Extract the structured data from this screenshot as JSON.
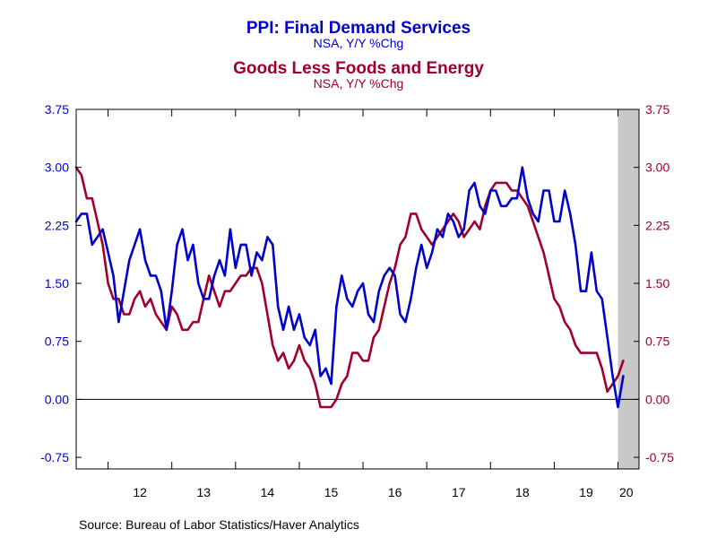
{
  "titles": {
    "series1_title": "PPI: Final Demand Services",
    "series1_sub": "NSA, Y/Y %Chg",
    "series2_title": "Goods Less Foods and Energy",
    "series2_sub": "NSA, Y/Y %Chg"
  },
  "source": "Source:  Bureau of Labor Statistics/Haver Analytics",
  "colors": {
    "series1": "#0000CC",
    "series2": "#A0002A",
    "recession_shade": "#C8C8C8",
    "left_axis_labels": "#0000CC",
    "right_axis_labels": "#A0002A",
    "frame": "#000000",
    "background": "#FFFFFF"
  },
  "chart_data": {
    "type": "line",
    "x_range": [
      2011.5,
      2020.33
    ],
    "ylim": [
      -0.9,
      3.75
    ],
    "yticks": [
      -0.75,
      0.0,
      0.75,
      1.5,
      2.25,
      3.0,
      3.75
    ],
    "left_tick_labels": [
      "-0.75",
      "0.00",
      "0.75",
      "1.50",
      "2.25",
      "3.00",
      "3.75"
    ],
    "right_tick_labels": [
      "-0.75",
      "0.00",
      "0.75",
      "1.50",
      "2.25",
      "3.00",
      "3.75"
    ],
    "x_tick_labels": [
      "12",
      "13",
      "14",
      "15",
      "16",
      "17",
      "18",
      "19",
      "20"
    ],
    "x_tick_label_positions": [
      2012.5,
      2013.5,
      2014.5,
      2015.5,
      2016.5,
      2017.5,
      2018.5,
      2019.5,
      2020.13
    ],
    "zero_line": 0,
    "grid": false,
    "shaded_region": [
      2020.0,
      2020.33
    ],
    "start": 2011.5,
    "step": 0.08333,
    "series": [
      {
        "name": "PPI: Final Demand Services",
        "axis": "left",
        "values": [
          2.3,
          2.4,
          2.4,
          2.0,
          2.1,
          2.2,
          1.9,
          1.6,
          1.0,
          1.4,
          1.8,
          2.0,
          2.2,
          1.8,
          1.6,
          1.6,
          1.4,
          0.9,
          1.4,
          2.0,
          2.2,
          1.8,
          2.0,
          1.5,
          1.3,
          1.3,
          1.6,
          1.8,
          1.6,
          2.2,
          1.7,
          2.0,
          2.0,
          1.6,
          1.9,
          1.8,
          2.1,
          2.0,
          1.2,
          0.9,
          1.2,
          0.9,
          1.1,
          0.8,
          0.7,
          0.9,
          0.3,
          0.4,
          0.2,
          1.2,
          1.6,
          1.3,
          1.2,
          1.4,
          1.5,
          1.1,
          1.0,
          1.4,
          1.6,
          1.7,
          1.6,
          1.1,
          1.0,
          1.3,
          1.7,
          2.0,
          1.7,
          1.9,
          2.2,
          2.1,
          2.4,
          2.3,
          2.1,
          2.2,
          2.7,
          2.8,
          2.5,
          2.4,
          2.7,
          2.7,
          2.5,
          2.5,
          2.6,
          2.6,
          3.0,
          2.6,
          2.4,
          2.3,
          2.7,
          2.7,
          2.3,
          2.3,
          2.7,
          2.4,
          2.0,
          1.4,
          1.4,
          1.9,
          1.4,
          1.3,
          0.8,
          0.3,
          -0.1,
          0.3
        ]
      },
      {
        "name": "Goods Less Foods and Energy",
        "axis": "right",
        "values": [
          3.0,
          2.9,
          2.6,
          2.6,
          2.3,
          2.0,
          1.5,
          1.3,
          1.3,
          1.1,
          1.1,
          1.3,
          1.4,
          1.2,
          1.3,
          1.1,
          1.0,
          0.9,
          1.2,
          1.1,
          0.9,
          0.9,
          1.0,
          1.0,
          1.3,
          1.6,
          1.4,
          1.2,
          1.4,
          1.4,
          1.5,
          1.6,
          1.6,
          1.7,
          1.7,
          1.5,
          1.1,
          0.7,
          0.5,
          0.6,
          0.4,
          0.5,
          0.7,
          0.5,
          0.4,
          0.2,
          -0.1,
          -0.1,
          -0.1,
          0.0,
          0.2,
          0.3,
          0.6,
          0.6,
          0.5,
          0.5,
          0.8,
          0.9,
          1.2,
          1.5,
          1.7,
          2.0,
          2.1,
          2.4,
          2.4,
          2.2,
          2.1,
          2.0,
          2.1,
          2.2,
          2.3,
          2.4,
          2.3,
          2.1,
          2.2,
          2.3,
          2.2,
          2.5,
          2.7,
          2.8,
          2.8,
          2.8,
          2.7,
          2.7,
          2.6,
          2.5,
          2.3,
          2.1,
          1.9,
          1.6,
          1.3,
          1.2,
          1.0,
          0.9,
          0.7,
          0.6,
          0.6,
          0.6,
          0.6,
          0.4,
          0.1,
          0.2,
          0.3,
          0.5
        ]
      }
    ]
  }
}
